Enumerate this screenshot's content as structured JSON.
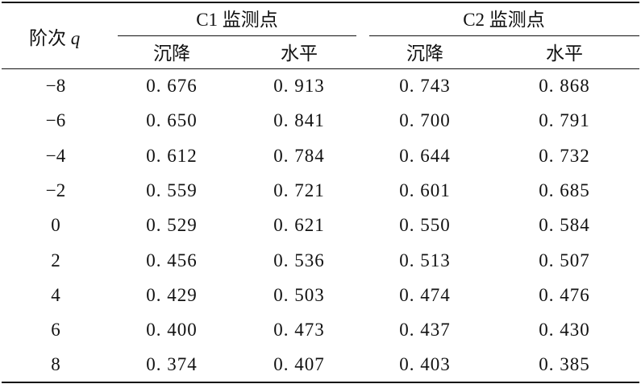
{
  "table": {
    "order_label": "阶次",
    "order_symbol": "q",
    "groups": [
      "C1 监测点",
      "C2 监测点"
    ],
    "subheaders": [
      "沉降",
      "水平",
      "沉降",
      "水平"
    ],
    "rows": [
      {
        "q": "−8",
        "v": [
          "0. 676",
          "0. 913",
          "0. 743",
          "0. 868"
        ]
      },
      {
        "q": "−6",
        "v": [
          "0. 650",
          "0. 841",
          "0. 700",
          "0. 791"
        ]
      },
      {
        "q": "−4",
        "v": [
          "0. 612",
          "0. 784",
          "0. 644",
          "0. 732"
        ]
      },
      {
        "q": "−2",
        "v": [
          "0. 559",
          "0. 721",
          "0. 601",
          "0. 685"
        ]
      },
      {
        "q": "0",
        "v": [
          "0. 529",
          "0. 621",
          "0. 550",
          "0. 584"
        ]
      },
      {
        "q": "2",
        "v": [
          "0. 456",
          "0. 536",
          "0. 513",
          "0. 507"
        ]
      },
      {
        "q": "4",
        "v": [
          "0. 429",
          "0. 503",
          "0. 474",
          "0. 476"
        ]
      },
      {
        "q": "6",
        "v": [
          "0. 400",
          "0. 473",
          "0. 437",
          "0. 430"
        ]
      },
      {
        "q": "8",
        "v": [
          "0. 374",
          "0. 407",
          "0. 403",
          "0. 385"
        ]
      }
    ]
  }
}
